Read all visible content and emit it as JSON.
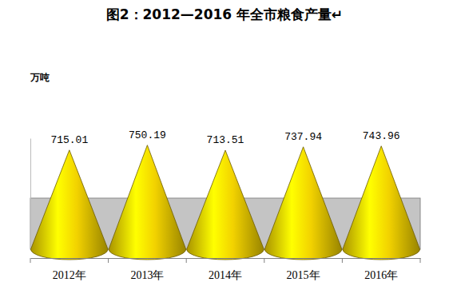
{
  "chart_data": {
    "type": "bar",
    "title": "图2：2012—2016 年全市粮食产量↵",
    "ylabel": "万吨",
    "categories": [
      "2012年",
      "2013年",
      "2014年",
      "2015年",
      "2016年"
    ],
    "values": [
      715.01,
      750.19,
      713.51,
      737.94,
      743.96
    ],
    "color": "#f2d200",
    "marker": "cone",
    "ylim": [
      0,
      800
    ],
    "yticks": [],
    "data_labels": true,
    "tick_labels": "x"
  }
}
